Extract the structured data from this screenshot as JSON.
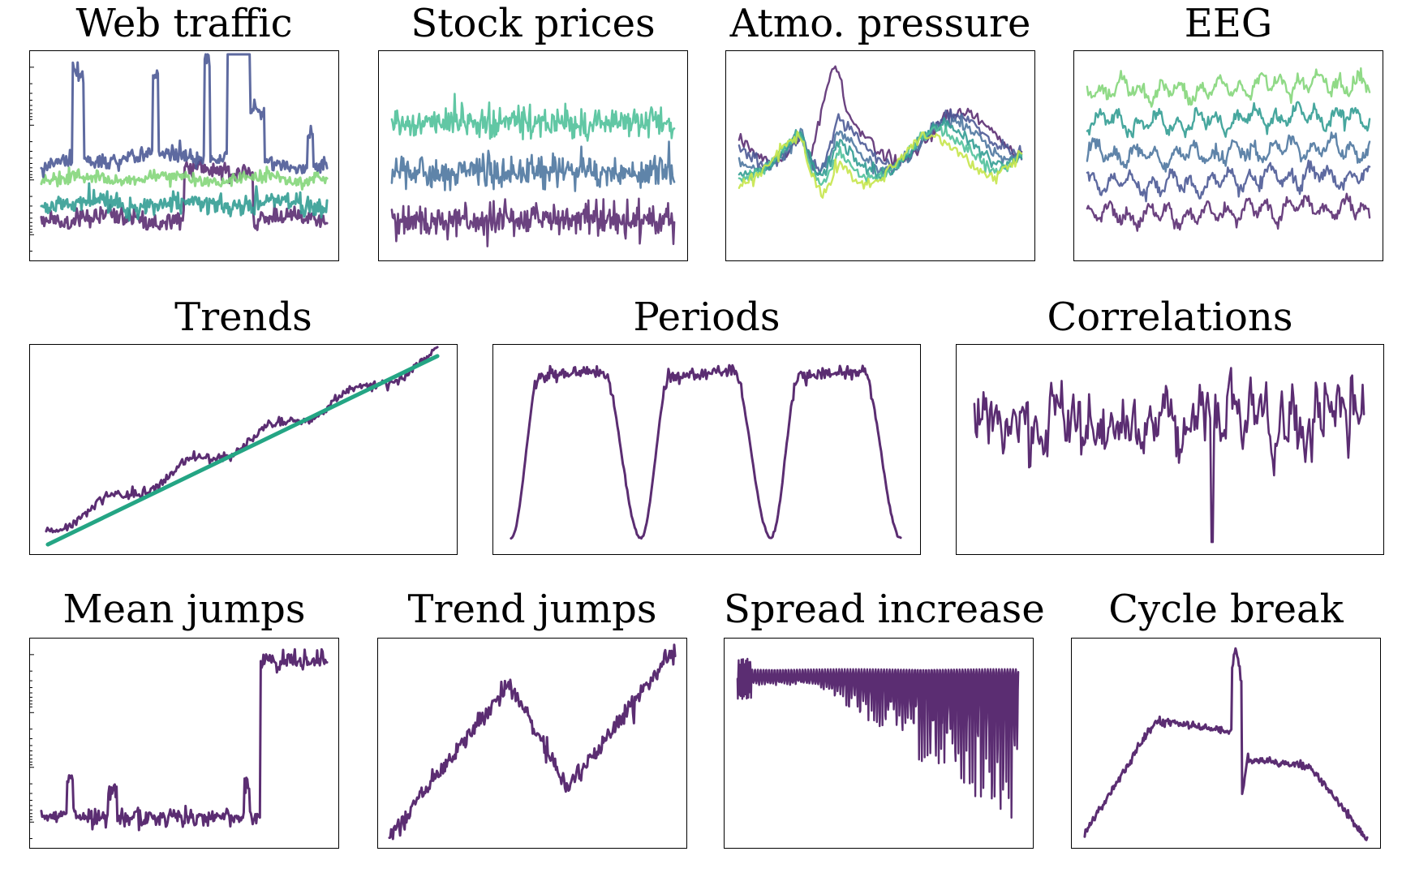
{
  "colors": {
    "dark_purple": "#5b2d72",
    "indigo": "#4c5a96",
    "slate_blue": "#4e77a0",
    "teal": "#339d93",
    "sea_green": "#50c19a",
    "light_green": "#84d67a",
    "lime": "#c7e54b",
    "trend_green": "#24a584"
  },
  "chart_data": [
    {
      "type": "line",
      "title": "Web traffic",
      "xlabel": "",
      "ylabel": "",
      "grid": false,
      "yscale": "log",
      "series": [
        {
          "style": "multi-series spiky log-scale traffic",
          "count": 5
        }
      ]
    },
    {
      "type": "line",
      "title": "Stock prices",
      "xlabel": "",
      "ylabel": "",
      "grid": false,
      "series": [
        {
          "style": "noisy level series",
          "count": 3
        }
      ]
    },
    {
      "type": "line",
      "title": "Atmo. pressure",
      "xlabel": "",
      "ylabel": "",
      "grid": false,
      "series": [
        {
          "style": "smooth correlated weather series",
          "count": 6
        }
      ]
    },
    {
      "type": "line",
      "title": "EEG",
      "xlabel": "",
      "ylabel": "",
      "grid": false,
      "series": [
        {
          "style": "stacked oscillatory channels",
          "count": 5
        }
      ]
    },
    {
      "type": "line",
      "title": "Trends",
      "xlabel": "",
      "ylabel": "",
      "grid": false,
      "series": [
        {
          "style": "noisy upward trend with fitted line",
          "count": 1
        }
      ]
    },
    {
      "type": "line",
      "title": "Periods",
      "xlabel": "",
      "ylabel": "",
      "grid": false,
      "series": [
        {
          "style": "three plateau cycles",
          "count": 1
        }
      ]
    },
    {
      "type": "line",
      "title": "Correlations",
      "xlabel": "",
      "ylabel": "",
      "grid": false,
      "series": [
        {
          "style": "autocorrelated noise",
          "count": 1
        }
      ]
    },
    {
      "type": "line",
      "title": "Mean jumps",
      "xlabel": "",
      "ylabel": "",
      "grid": false,
      "series": [
        {
          "style": "level shift at ~75% of length",
          "count": 1
        }
      ]
    },
    {
      "type": "line",
      "title": "Trend jumps",
      "xlabel": "",
      "ylabel": "",
      "grid": false,
      "series": [
        {
          "style": "rise, drop, rise again",
          "count": 1
        }
      ]
    },
    {
      "type": "line",
      "title": "Spread increase",
      "xlabel": "",
      "ylabel": "",
      "grid": false,
      "series": [
        {
          "style": "oscillation with growing downward spread",
          "count": 1
        }
      ]
    },
    {
      "type": "line",
      "title": "Cycle break",
      "xlabel": "",
      "ylabel": "",
      "grid": false,
      "series": [
        {
          "style": "two plateaus with a spike at the break",
          "count": 1
        }
      ]
    }
  ]
}
